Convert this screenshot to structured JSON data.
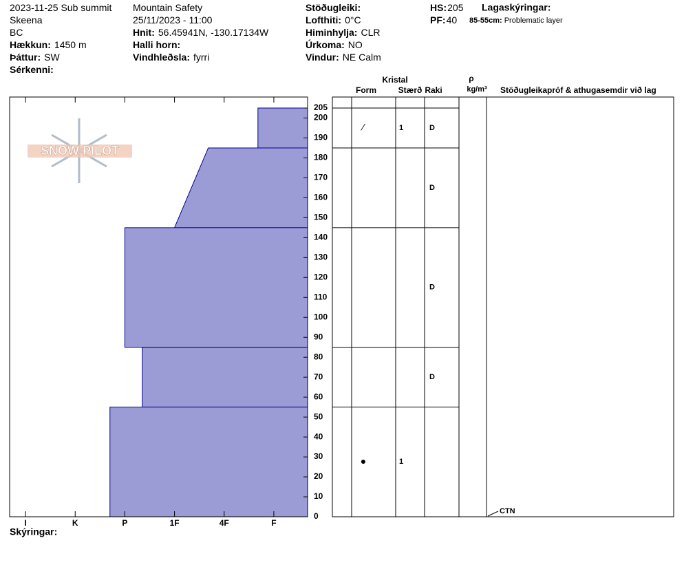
{
  "header": {
    "columns": [
      [
        {
          "text": "2023-11-25 Sub summit"
        },
        {
          "text": "Skeena"
        },
        {
          "text": "BC"
        },
        {
          "label": "Hækkun:",
          "value": "1450 m"
        },
        {
          "label": "Þáttur:",
          "value": "SW"
        },
        {
          "label": "Sérkenni:"
        }
      ],
      [
        {
          "text": "Mountain Safety"
        },
        {
          "text": "25/11/2023 - 11:00"
        },
        {
          "label": "Hnit:",
          "value": "56.45941N, -130.17134W"
        },
        {
          "label": "Halli horn:"
        },
        {
          "label": "Vindhleðsla:",
          "value": "fyrri"
        }
      ],
      [
        {
          "label": "Stöðugleiki:"
        },
        {
          "label": "Lofthiti:",
          "value": "0°C"
        },
        {
          "label": "Himinhylja:",
          "value": "CLR"
        },
        {
          "label": "Úrkoma:",
          "value": "NO"
        },
        {
          "label": "Vindur:",
          "value": "NE Calm"
        }
      ],
      [
        {
          "label": "HS:",
          "value": 205
        },
        {
          "label": "PF:",
          "value": 40
        }
      ]
    ],
    "legend": {
      "title": "Lagaskýringar:",
      "items": [
        {
          "key": "85-55cm:",
          "text": "Problematic layer"
        }
      ]
    },
    "logo": "SNOW PILOT"
  },
  "chart_data": {
    "type": "profile",
    "xlim": [
      6.32,
      0.32
    ],
    "xticks": [
      {
        "value": 6,
        "label": "I"
      },
      {
        "value": 5,
        "label": "K"
      },
      {
        "value": 4,
        "label": "P"
      },
      {
        "value": 3,
        "label": "1F"
      },
      {
        "value": 2,
        "label": "4F"
      },
      {
        "value": 1,
        "label": "F"
      }
    ],
    "ylim": [
      0,
      205
    ],
    "yticks": [
      0,
      10,
      20,
      30,
      40,
      50,
      60,
      70,
      80,
      90,
      100,
      110,
      120,
      130,
      140,
      150,
      160,
      170,
      180,
      190,
      200,
      205
    ],
    "color": "#9b9bd6",
    "edge_color": "#00008b",
    "columns": {
      "crystal": "Kristal",
      "form": "Form",
      "size": "Stærð",
      "moisture": "Raki",
      "density_symbol": "ρ",
      "density_unit": "kg/m³",
      "comments": "Stöðugleikapróf & athugasemdir við lag"
    },
    "layers": [
      {
        "bottom": 185,
        "top": 205,
        "hardness_bottom": 1.32,
        "hardness_top": 1.32,
        "form": "⁄",
        "size": 1,
        "moisture": "D"
      },
      {
        "bottom": 145,
        "top": 185,
        "hardness_bottom": 3,
        "hardness_top": 2.32,
        "moisture": "D"
      },
      {
        "bottom": 85,
        "top": 145,
        "hardness_bottom": 4,
        "hardness_top": 4,
        "moisture": "D"
      },
      {
        "bottom": 55,
        "top": 85,
        "hardness_bottom": 3.65,
        "hardness_top": 3.65,
        "moisture": "D"
      },
      {
        "bottom": 0,
        "top": 55,
        "hardness_bottom": 4.3,
        "hardness_top": 4.3,
        "form": "●",
        "size": 1
      }
    ],
    "tests": [
      {
        "height": 0,
        "label": "CTN"
      }
    ]
  },
  "footer": {
    "label": "Skýringar:"
  }
}
